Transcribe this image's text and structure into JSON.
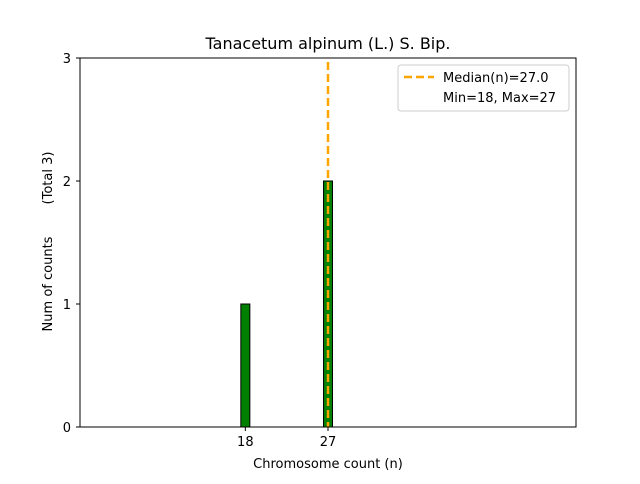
{
  "chart_data": {
    "type": "bar",
    "title": "Tanacetum alpinum (L.) S. Bip.",
    "xlabel": "Chromosome count (n)",
    "ylabel": "Num of counts",
    "ylabel_note": "(Total 3)",
    "x": [
      18,
      27
    ],
    "values": [
      1,
      2
    ],
    "xticks": [
      18,
      27
    ],
    "yticks": [
      0,
      1,
      2,
      3
    ],
    "xlim": [
      0,
      54
    ],
    "ylim": [
      0,
      3
    ],
    "bar_color": "#008000",
    "bar_edge_color": "#000000",
    "median": 27.0,
    "median_color": "#FFA500",
    "legend": {
      "placement": "top-right",
      "entries": [
        "Median(n)=27.0",
        "Min=18, Max=27"
      ]
    }
  }
}
